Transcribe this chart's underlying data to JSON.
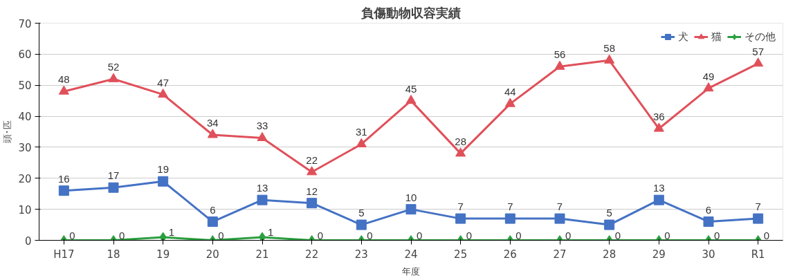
{
  "chart_data": {
    "type": "line",
    "title": "負傷動物収容実績",
    "ylabel": "頭･匹",
    "xlabel": "年度",
    "categories": [
      "H17",
      "18",
      "19",
      "20",
      "21",
      "22",
      "23",
      "24",
      "25",
      "26",
      "27",
      "28",
      "29",
      "30",
      "R1"
    ],
    "series": [
      {
        "name": "犬",
        "color": "#4472c4",
        "marker": "square",
        "values": [
          16,
          17,
          19,
          6,
          13,
          12,
          5,
          10,
          7,
          7,
          7,
          5,
          13,
          6,
          7
        ]
      },
      {
        "name": "猫",
        "color": "#e0505a",
        "marker": "triangle",
        "values": [
          48,
          52,
          47,
          34,
          33,
          22,
          31,
          45,
          28,
          44,
          56,
          58,
          36,
          49,
          57
        ]
      },
      {
        "name": "その他",
        "color": "#2ca040",
        "marker": "diamond",
        "values": [
          0,
          0,
          1,
          0,
          1,
          0,
          0,
          0,
          0,
          0,
          0,
          0,
          0,
          0,
          0
        ]
      }
    ],
    "ylim": [
      0,
      70
    ],
    "yticks": [
      0,
      10,
      20,
      30,
      40,
      50,
      60,
      70
    ],
    "grid": "y",
    "legend": "top right",
    "data_labels": true,
    "line_style": "solid"
  }
}
